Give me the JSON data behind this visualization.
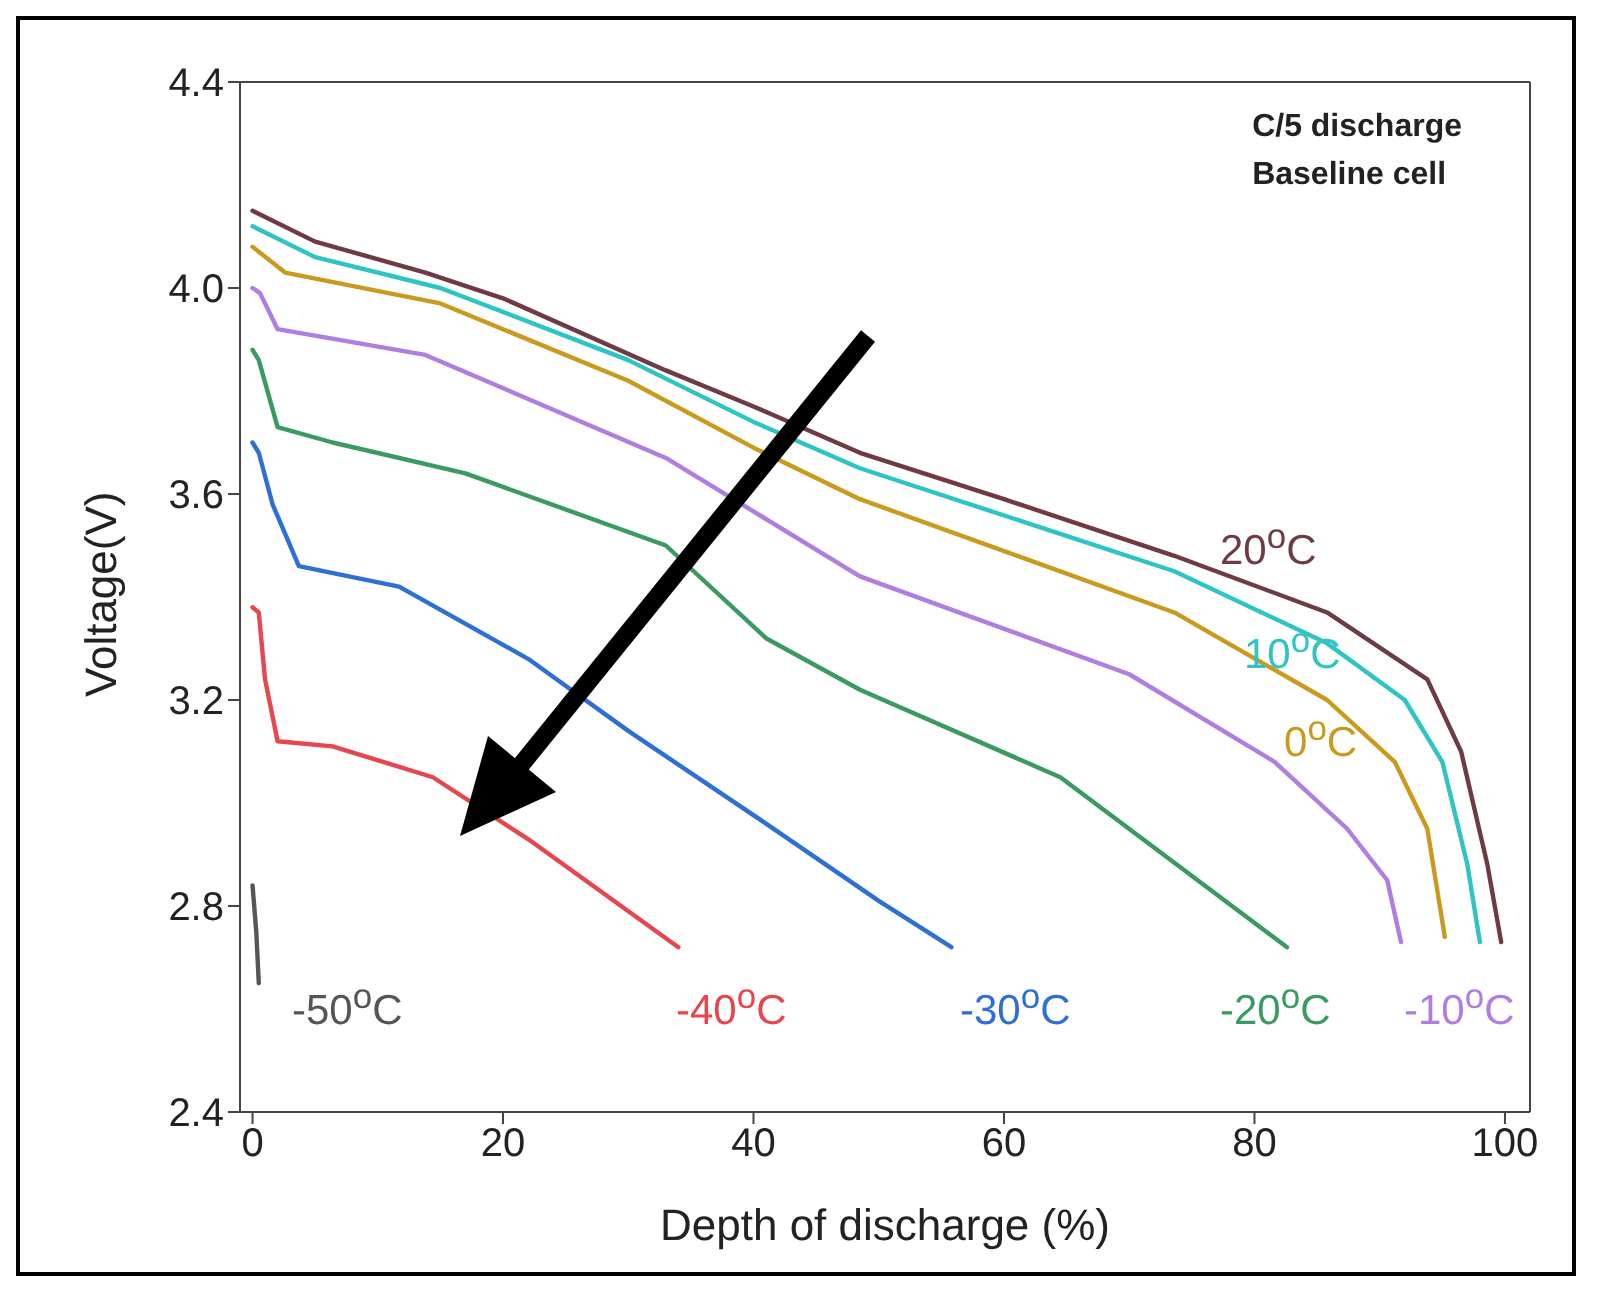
{
  "chart_data": {
    "type": "line",
    "xlabel": "Depth of discharge (%)",
    "ylabel": "Voltage(V)",
    "annotations": [
      "C/5 discharge",
      "Baseline cell"
    ],
    "xlim": [
      -1,
      102
    ],
    "xticks": [
      0,
      20,
      40,
      60,
      80,
      100
    ],
    "ylim": [
      2.4,
      4.4
    ],
    "yticks": [
      {
        "value": 2.4,
        "label": "2.4"
      },
      {
        "value": 2.8,
        "label": "2.8"
      },
      {
        "value": 3.2,
        "label": "3.2"
      },
      {
        "value": 3.6,
        "label": "3.6"
      },
      {
        "value": 4.0,
        "label": "4.0"
      },
      {
        "value": 4.4,
        "label": "4.4"
      }
    ],
    "grid": false,
    "legend": false,
    "marker": "none",
    "line_style": "solid",
    "series": [
      {
        "name": "20$^{o}$C",
        "color": "#6e3b44",
        "x": [
          0,
          5,
          13.8,
          20,
          33,
          40,
          48.5,
          60,
          73.6,
          85.8,
          93.8,
          96.5,
          98.6,
          99.7
        ],
        "values": [
          4.15,
          4.09,
          4.03,
          3.98,
          3.84,
          3.77,
          3.68,
          3.59,
          3.48,
          3.37,
          3.24,
          3.1,
          2.88,
          2.73
        ]
      },
      {
        "name": "10$^{o}$C",
        "color": "#2ec4c4",
        "x": [
          0,
          5,
          15,
          30,
          40,
          48.5,
          73.6,
          85.8,
          92,
          95,
          97,
          98
        ],
        "values": [
          4.12,
          4.06,
          4.0,
          3.86,
          3.74,
          3.65,
          3.45,
          3.31,
          3.2,
          3.08,
          2.88,
          2.73
        ]
      },
      {
        "name": "0$^{o}$C",
        "color": "#c99a1e",
        "x": [
          0,
          2.6,
          15,
          30,
          40,
          48.5,
          73.6,
          85.8,
          91.2,
          93.8,
          95.2
        ],
        "values": [
          4.08,
          4.03,
          3.97,
          3.82,
          3.69,
          3.59,
          3.37,
          3.2,
          3.08,
          2.95,
          2.74
        ]
      },
      {
        "name": "-10$^{o}$C",
        "color": "#b07de0",
        "x": [
          0,
          0.6,
          2,
          13.8,
          33,
          48.5,
          70,
          81.6,
          87.4,
          90.6,
          91.7
        ],
        "values": [
          4.0,
          3.99,
          3.92,
          3.87,
          3.67,
          3.44,
          3.25,
          3.08,
          2.95,
          2.85,
          2.73
        ]
      },
      {
        "name": "-20$^{o}$C",
        "color": "#3a9a62",
        "x": [
          0,
          0.5,
          2,
          6.4,
          17,
          33,
          41,
          48.5,
          64.5,
          82.6
        ],
        "values": [
          3.88,
          3.86,
          3.73,
          3.7,
          3.64,
          3.5,
          3.32,
          3.22,
          3.05,
          2.72
        ]
      },
      {
        "name": "-30$^{o}$C",
        "color": "#2e6fd6",
        "x": [
          0,
          0.5,
          1.6,
          3.7,
          11.7,
          22,
          30,
          41,
          50,
          55.8
        ],
        "values": [
          3.7,
          3.68,
          3.58,
          3.46,
          3.42,
          3.28,
          3.14,
          2.96,
          2.81,
          2.72
        ]
      },
      {
        "name": "-40$^{o}$C",
        "color": "#e8464e",
        "x": [
          0,
          0.5,
          1,
          2,
          6.4,
          14.4,
          22,
          34
        ],
        "values": [
          3.38,
          3.37,
          3.24,
          3.12,
          3.11,
          3.05,
          2.93,
          2.72
        ]
      },
      {
        "name": "-50$^{o}$C",
        "color": "#555555",
        "x": [
          0,
          0.3,
          0.5
        ],
        "values": [
          2.84,
          2.75,
          2.65
        ]
      }
    ]
  }
}
